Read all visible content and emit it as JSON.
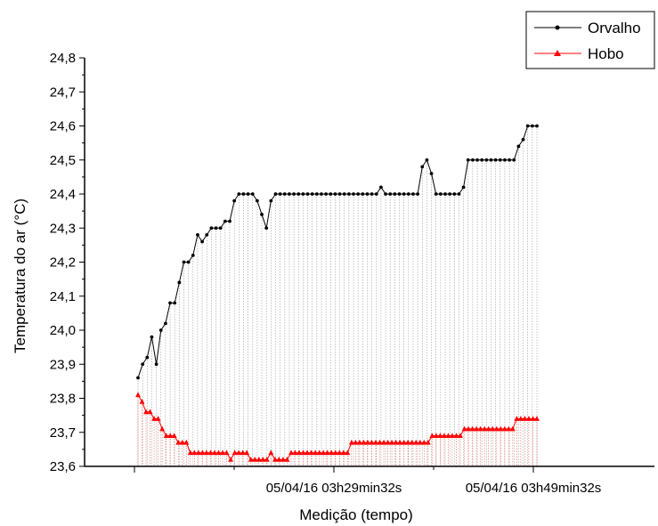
{
  "chart_data": {
    "type": "line",
    "xlabel": "Medição (tempo)",
    "ylabel": "Temperatura do ar (°C)",
    "ylim": [
      23.6,
      24.8
    ],
    "yticks": [
      "23,6",
      "23,7",
      "23,8",
      "23,9",
      "24,0",
      "24,1",
      "24,2",
      "24,3",
      "24,4",
      "24,5",
      "24,6",
      "24,7",
      "24,8"
    ],
    "xtick_labels": [
      "05/04/16 03h29min32s",
      "05/04/16 03h49min32s"
    ],
    "legend_position": "top-right",
    "series": [
      {
        "name": "Orvalho",
        "color": "#000000",
        "marker": "circle",
        "dropline": "vertical",
        "values": [
          23.86,
          23.9,
          23.92,
          23.98,
          23.9,
          24.0,
          24.02,
          24.08,
          24.08,
          24.14,
          24.2,
          24.2,
          24.22,
          24.28,
          24.26,
          24.28,
          24.3,
          24.3,
          24.3,
          24.32,
          24.32,
          24.38,
          24.4,
          24.4,
          24.4,
          24.4,
          24.38,
          24.34,
          24.3,
          24.38,
          24.4,
          24.4,
          24.4,
          24.4,
          24.4,
          24.4,
          24.4,
          24.4,
          24.4,
          24.4,
          24.4,
          24.4,
          24.4,
          24.4,
          24.4,
          24.4,
          24.4,
          24.4,
          24.4,
          24.4,
          24.4,
          24.4,
          24.4,
          24.42,
          24.4,
          24.4,
          24.4,
          24.4,
          24.4,
          24.4,
          24.4,
          24.4,
          24.48,
          24.5,
          24.46,
          24.4,
          24.4,
          24.4,
          24.4,
          24.4,
          24.4,
          24.42,
          24.5,
          24.5,
          24.5,
          24.5,
          24.5,
          24.5,
          24.5,
          24.5,
          24.5,
          24.5,
          24.5,
          24.54,
          24.56,
          24.6,
          24.6,
          24.6
        ]
      },
      {
        "name": "Hobo",
        "color": "#ff0000",
        "marker": "triangle",
        "dropline": "vertical",
        "values": [
          23.81,
          23.79,
          23.76,
          23.76,
          23.74,
          23.74,
          23.71,
          23.69,
          23.69,
          23.69,
          23.67,
          23.67,
          23.67,
          23.64,
          23.64,
          23.64,
          23.64,
          23.64,
          23.64,
          23.64,
          23.64,
          23.64,
          23.64,
          23.62,
          23.64,
          23.64,
          23.64,
          23.64,
          23.62,
          23.62,
          23.62,
          23.62,
          23.62,
          23.64,
          23.62,
          23.62,
          23.62,
          23.62,
          23.64,
          23.64,
          23.64,
          23.64,
          23.64,
          23.64,
          23.64,
          23.64,
          23.64,
          23.64,
          23.64,
          23.64,
          23.64,
          23.64,
          23.64,
          23.67,
          23.67,
          23.67,
          23.67,
          23.67,
          23.67,
          23.67,
          23.67,
          23.67,
          23.67,
          23.67,
          23.67,
          23.67,
          23.67,
          23.67,
          23.67,
          23.67,
          23.67,
          23.67,
          23.67,
          23.69,
          23.69,
          23.69,
          23.69,
          23.69,
          23.69,
          23.69,
          23.69,
          23.71,
          23.71,
          23.71,
          23.71,
          23.71,
          23.71,
          23.71,
          23.71,
          23.71,
          23.71,
          23.71,
          23.71,
          23.71,
          23.74,
          23.74,
          23.74,
          23.74,
          23.74,
          23.74
        ]
      }
    ]
  }
}
